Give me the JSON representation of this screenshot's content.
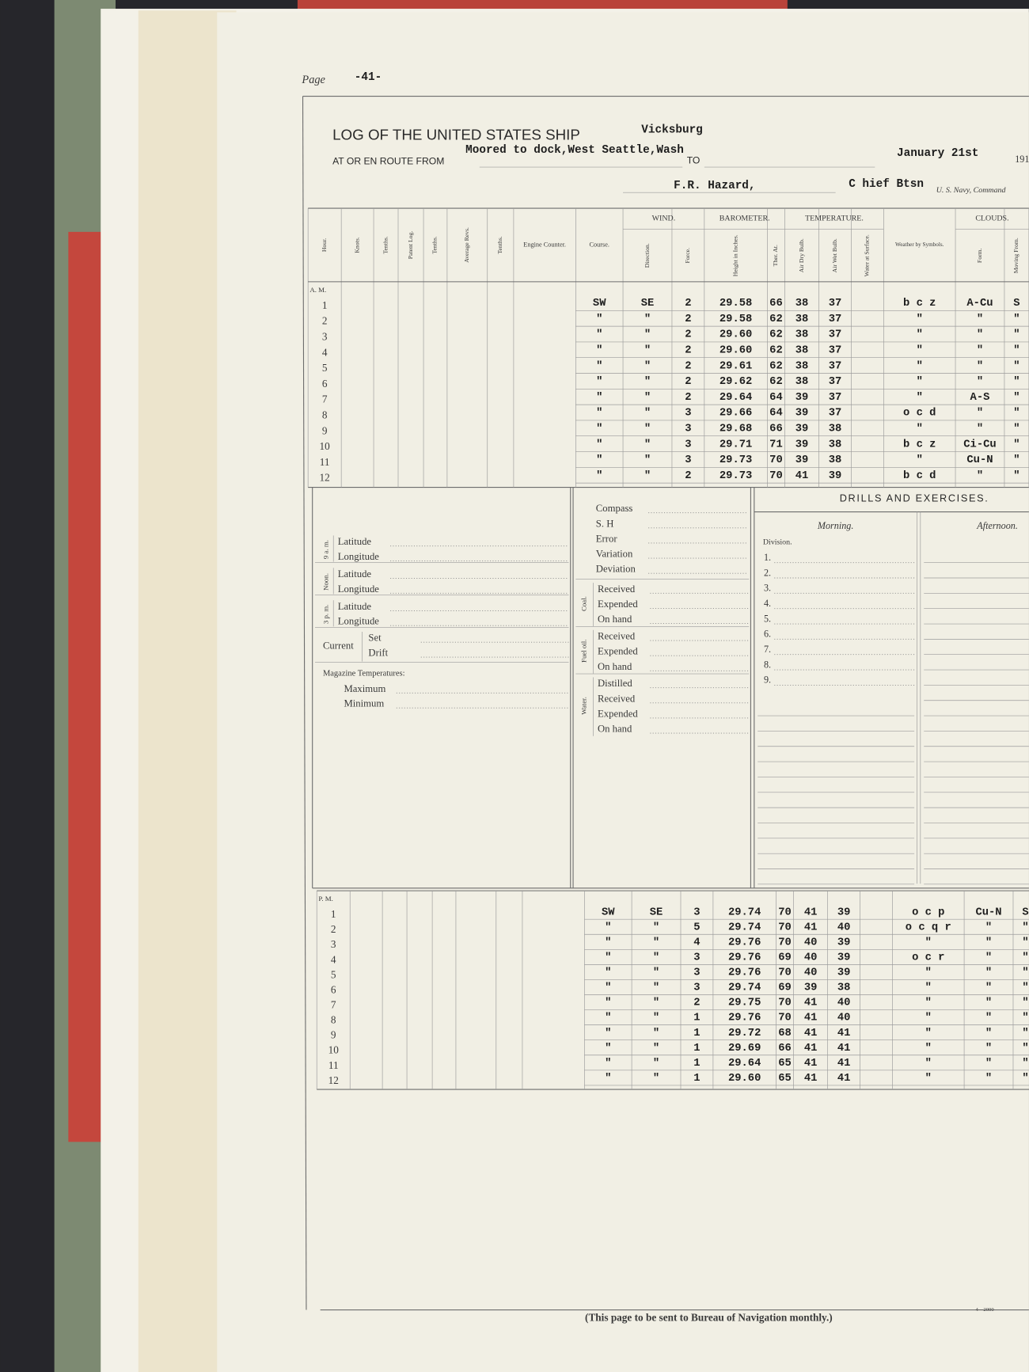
{
  "header": {
    "page_label": "Page",
    "page_number": "-41-",
    "title": "LOG OF THE UNITED STATES SHIP",
    "ship": "Vicksburg",
    "route_label": "AT OR EN ROUTE FROM",
    "route_from": "Moored to dock,West Seattle,Wash",
    "to_label": "TO",
    "date": "January 21st",
    "year": "191",
    "officer": "F.R. Hazard,",
    "rank": "C hief Btsn",
    "navy_label": "U. S. Navy, Command"
  },
  "table": {
    "groups": [
      "WIND.",
      "BAROMETER.",
      "TEMPERATURE.",
      "CLOUDS."
    ],
    "columns": [
      "Hour.",
      "Knots.",
      "Tenths.",
      "Patent Log.",
      "Tenths.",
      "Average Revs.",
      "Tenths.",
      "Engine Counter.",
      "Course.",
      "Direction.",
      "Force.",
      "Height in Inches.",
      "Ther. At.",
      "Air Dry Bulb.",
      "Air Wet Bulb.",
      "Water at Surface.",
      "Weather by Symbols.",
      "Form.",
      "Moving From."
    ],
    "am_label": "A. M.",
    "am_rows": [
      [
        "1",
        "SW",
        "SE",
        "2",
        "29.58",
        "66",
        "38",
        "37",
        "b c z",
        "A-Cu",
        "S"
      ],
      [
        "2",
        "\"",
        "\"",
        "2",
        "29.58",
        "62",
        "38",
        "37",
        "\"",
        "\"",
        "\""
      ],
      [
        "3",
        "\"",
        "\"",
        "2",
        "29.60",
        "62",
        "38",
        "37",
        "\"",
        "\"",
        "\""
      ],
      [
        "4",
        "\"",
        "\"",
        "2",
        "29.60",
        "62",
        "38",
        "37",
        "\"",
        "\"",
        "\""
      ],
      [
        "5",
        "\"",
        "\"",
        "2",
        "29.61",
        "62",
        "38",
        "37",
        "\"",
        "\"",
        "\""
      ],
      [
        "6",
        "\"",
        "\"",
        "2",
        "29.62",
        "62",
        "38",
        "37",
        "\"",
        "\"",
        "\""
      ],
      [
        "7",
        "\"",
        "\"",
        "2",
        "29.64",
        "64",
        "39",
        "37",
        "\"",
        "A-S",
        "\""
      ],
      [
        "8",
        "\"",
        "\"",
        "3",
        "29.66",
        "64",
        "39",
        "37",
        "o c d",
        "\"",
        "\""
      ],
      [
        "9",
        "\"",
        "\"",
        "3",
        "29.68",
        "66",
        "39",
        "38",
        "\"",
        "\"",
        "\""
      ],
      [
        "10",
        "\"",
        "\"",
        "3",
        "29.71",
        "71",
        "39",
        "38",
        "b c z",
        "Ci-Cu",
        "\""
      ],
      [
        "11",
        "\"",
        "\"",
        "3",
        "29.73",
        "70",
        "39",
        "38",
        "\"",
        "Cu-N",
        "\""
      ],
      [
        "12",
        "\"",
        "\"",
        "2",
        "29.73",
        "70",
        "41",
        "39",
        "b c d",
        "\"",
        "\""
      ]
    ],
    "pm_label": "P. M.",
    "pm_rows": [
      [
        "1",
        "SW",
        "SE",
        "3",
        "29.74",
        "70",
        "41",
        "39",
        "o c p",
        "Cu-N",
        "S"
      ],
      [
        "2",
        "\"",
        "\"",
        "5",
        "29.74",
        "70",
        "41",
        "40",
        "o c q r",
        "\"",
        "\""
      ],
      [
        "3",
        "\"",
        "\"",
        "4",
        "29.76",
        "70",
        "40",
        "39",
        "\"",
        "\"",
        "\""
      ],
      [
        "4",
        "\"",
        "\"",
        "3",
        "29.76",
        "69",
        "40",
        "39",
        "o c r",
        "\"",
        "\""
      ],
      [
        "5",
        "\"",
        "\"",
        "3",
        "29.76",
        "70",
        "40",
        "39",
        "\"",
        "\"",
        "\""
      ],
      [
        "6",
        "\"",
        "\"",
        "3",
        "29.74",
        "69",
        "39",
        "38",
        "\"",
        "\"",
        "\""
      ],
      [
        "7",
        "\"",
        "\"",
        "2",
        "29.75",
        "70",
        "41",
        "40",
        "\"",
        "\"",
        "\""
      ],
      [
        "8",
        "\"",
        "\"",
        "1",
        "29.76",
        "70",
        "41",
        "40",
        "\"",
        "\"",
        "\""
      ],
      [
        "9",
        "\"",
        "\"",
        "1",
        "29.72",
        "68",
        "41",
        "41",
        "\"",
        "\"",
        "\""
      ],
      [
        "10",
        "\"",
        "\"",
        "1",
        "29.69",
        "66",
        "41",
        "41",
        "\"",
        "\"",
        "\""
      ],
      [
        "11",
        "\"",
        "\"",
        "1",
        "29.64",
        "65",
        "41",
        "41",
        "\"",
        "\"",
        "\""
      ],
      [
        "12",
        "\"",
        "\"",
        "1",
        "29.60",
        "65",
        "41",
        "41",
        "\"",
        "\"",
        "\""
      ]
    ]
  },
  "positions": {
    "rows": [
      {
        "period": "9 a. m.",
        "latitude": "Latitude",
        "longitude": "Longitude"
      },
      {
        "period": "Noon.",
        "latitude": "Latitude",
        "longitude": "Longitude"
      },
      {
        "period": "3 p. m.",
        "latitude": "Latitude",
        "longitude": "Longitude"
      }
    ],
    "current": {
      "label": "Current",
      "set": "Set",
      "drift": "Drift"
    },
    "magazine": {
      "label": "Magazine Temperatures:",
      "maximum": "Maximum",
      "minimum": "Minimum"
    }
  },
  "supplies": {
    "compass": [
      "Compass",
      "S. H",
      "Error",
      "Variation",
      "Deviation"
    ],
    "coal": {
      "label": "Coal.",
      "items": [
        "Received",
        "Expended",
        "On hand"
      ]
    },
    "fuel_oil": {
      "label": "Fuel oil.",
      "items": [
        "Received",
        "Expended",
        "On hand"
      ]
    },
    "water": {
      "label": "Water.",
      "items": [
        "Distilled",
        "Received",
        "Expended",
        "On hand"
      ]
    }
  },
  "drills": {
    "title": "DRILLS AND EXERCISES.",
    "morning": "Morning.",
    "afternoon": "Afternoon.",
    "division": "Division.",
    "numbers": [
      "1.",
      "2.",
      "3.",
      "4.",
      "5.",
      "6.",
      "7.",
      "8.",
      "9."
    ]
  },
  "footer": {
    "note": "(This page to be sent to Bureau of Navigation monthly.)",
    "form_number": "4—2000"
  }
}
